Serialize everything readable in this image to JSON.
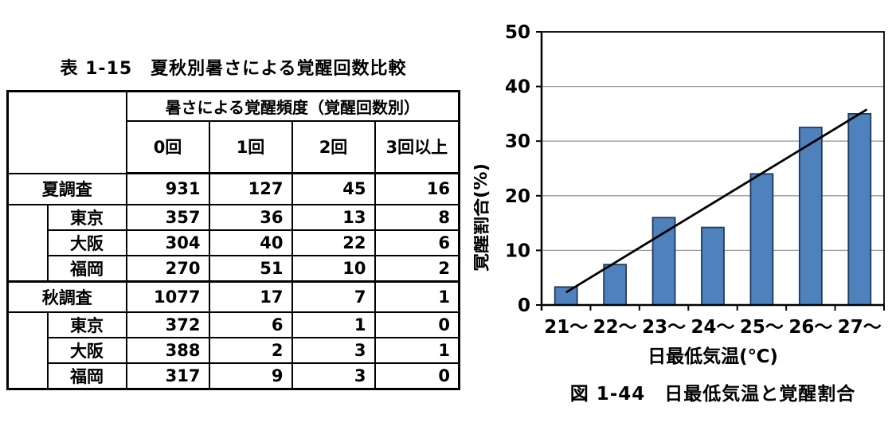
{
  "table_section": {
    "title": "表 1-15　夏秋別暑さによる覚醒回数比較",
    "header": {
      "group": "暑さによる覚醒頻度（覚醒回数別）",
      "columns": [
        "0回",
        "1回",
        "2回",
        "3回以上"
      ]
    },
    "sections": [
      {
        "label": "夏調査",
        "values": [
          "931",
          "127",
          "45",
          "16"
        ],
        "cities": [
          {
            "label": "東京",
            "values": [
              "357",
              "36",
              "13",
              "8"
            ]
          },
          {
            "label": "大阪",
            "values": [
              "304",
              "40",
              "22",
              "6"
            ]
          },
          {
            "label": "福岡",
            "values": [
              "270",
              "51",
              "10",
              "2"
            ]
          }
        ]
      },
      {
        "label": "秋調査",
        "values": [
          "1077",
          "17",
          "7",
          "1"
        ],
        "cities": [
          {
            "label": "東京",
            "values": [
              "372",
              "6",
              "1",
              "0"
            ]
          },
          {
            "label": "大阪",
            "values": [
              "388",
              "2",
              "3",
              "1"
            ]
          },
          {
            "label": "福岡",
            "values": [
              "317",
              "9",
              "3",
              "0"
            ]
          }
        ]
      }
    ]
  },
  "chart_data": {
    "type": "bar",
    "title": "図 1-44　日最低気温と覚醒割合",
    "categories": [
      "21～",
      "22～",
      "23～",
      "24～",
      "25～",
      "26～",
      "27～"
    ],
    "values": [
      3.3,
      7.4,
      16,
      14.2,
      24,
      32.5,
      35
    ],
    "xlabel": "日最低気温(℃)",
    "ylabel": "覚醒割合(%)",
    "ylim": [
      0,
      50
    ],
    "ytick_step": 10,
    "yticks": [
      0,
      10,
      20,
      30,
      40,
      50
    ],
    "grid": true,
    "legend": "none",
    "bar_color": "#4f81bd",
    "bar_border_color": "#1f3a5f",
    "gridline_color": "#9a9a9a",
    "axis_color": "#000000",
    "trendline": {
      "color": "#000000",
      "x_start_cat": 0.0,
      "y_start": 2.3,
      "x_end_cat": 6.15,
      "y_end": 35.8
    }
  }
}
